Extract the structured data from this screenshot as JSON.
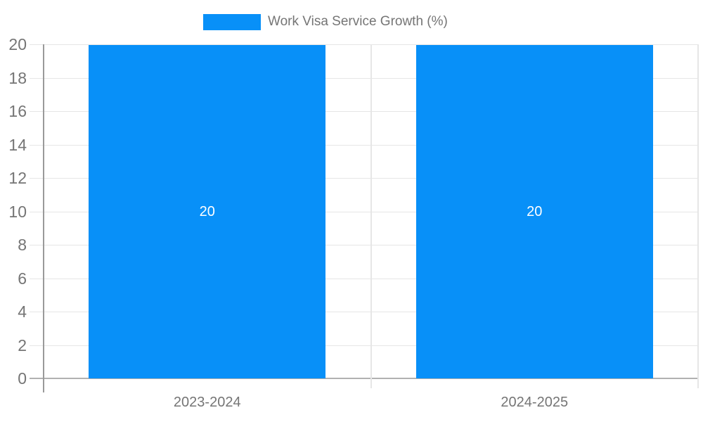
{
  "legend": {
    "label": "Work Visa Service Growth (%)"
  },
  "colors": {
    "bar": "#0890f8",
    "legend_text": "#757575",
    "axis_text": "#757575",
    "bar_label_text": "#ffffff",
    "gridline": "#e6e6e6",
    "axis_line": "#9a9a9a",
    "baseline": "#b1b1b1",
    "background": "#ffffff"
  },
  "chart_data": {
    "type": "bar",
    "title": "Work Visa Service Growth (%)",
    "categories": [
      "2023-2024",
      "2024-2025"
    ],
    "series": [
      {
        "name": "Work Visa Service Growth (%)",
        "values": [
          20,
          20
        ]
      }
    ],
    "bar_labels": [
      "20",
      "20"
    ],
    "xlabel": "",
    "ylabel": "",
    "ylim": [
      0,
      20
    ],
    "ytick_step": 2,
    "yticks": [
      0,
      2,
      4,
      6,
      8,
      10,
      12,
      14,
      16,
      18,
      20
    ],
    "grid": true,
    "legend_position": "top"
  }
}
